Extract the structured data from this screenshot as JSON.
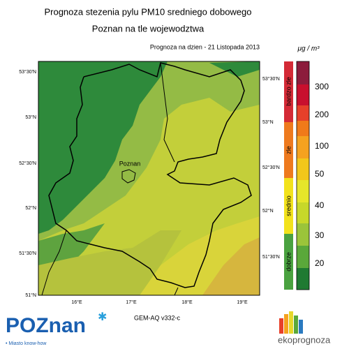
{
  "title": {
    "line1": "Prognoza stezenia pylu PM10 sredniego dobowego",
    "line2": "Poznan na tle wojewodztwa"
  },
  "forecast_label": "Prognoza na dzien -  21 Listopada 2013",
  "city_label": "Poznan",
  "lat_labels_left": [
    "53°30'N",
    "53°N",
    "52°30'N",
    "52°N",
    "51°30'N",
    "51°N"
  ],
  "lat_labels_right": [
    "53°30'N",
    "53°N",
    "52°30'N",
    "52°N",
    "51°30'N"
  ],
  "lon_labels": [
    "16°E",
    "17°E",
    "18°E",
    "19°E"
  ],
  "colorbar": {
    "unit": "μg / m³",
    "ticks": [
      "300",
      "200",
      "100",
      "50",
      "40",
      "30",
      "20"
    ],
    "categories": [
      "bardzo zle",
      "zle",
      "srednio",
      "dobrze"
    ]
  },
  "model_label": "GEM-AQ v332-c",
  "logos": {
    "poznan": "POZnan",
    "poznan_tagline": "• Miasto know-how",
    "ekoprognoza": "ekoprognoza"
  }
}
